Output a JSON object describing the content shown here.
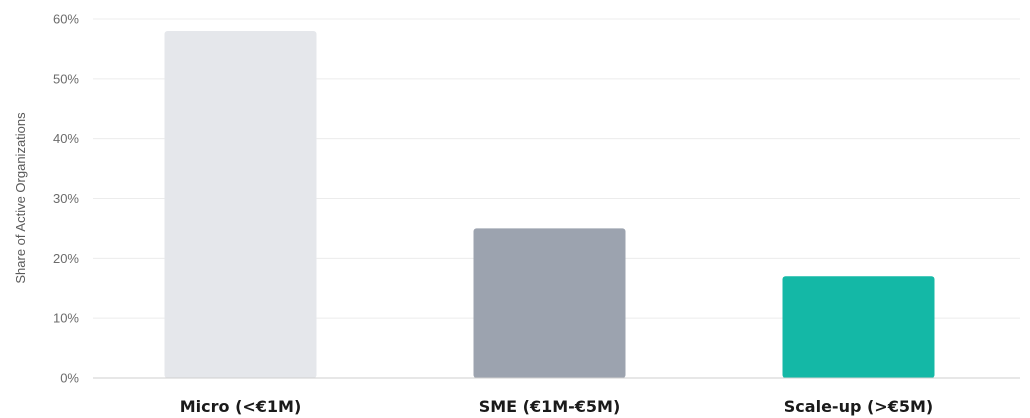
{
  "chart_data": {
    "type": "bar",
    "title": "",
    "xlabel": "",
    "ylabel": "Share of Active Organizations",
    "ylim": [
      0,
      60
    ],
    "yticks": [
      0,
      10,
      20,
      30,
      40,
      50,
      60
    ],
    "ytick_labels": [
      "0%",
      "10%",
      "20%",
      "30%",
      "40%",
      "50%",
      "60%"
    ],
    "grid": true,
    "legend": "none",
    "categories": [
      "Micro (<€1M)",
      "SME (€1M-€5M)",
      "Scale-up (>€5M)"
    ],
    "values": [
      58,
      25,
      17
    ],
    "colors": [
      "#e5e7eb",
      "#9ca3af",
      "#14b8a6"
    ]
  }
}
